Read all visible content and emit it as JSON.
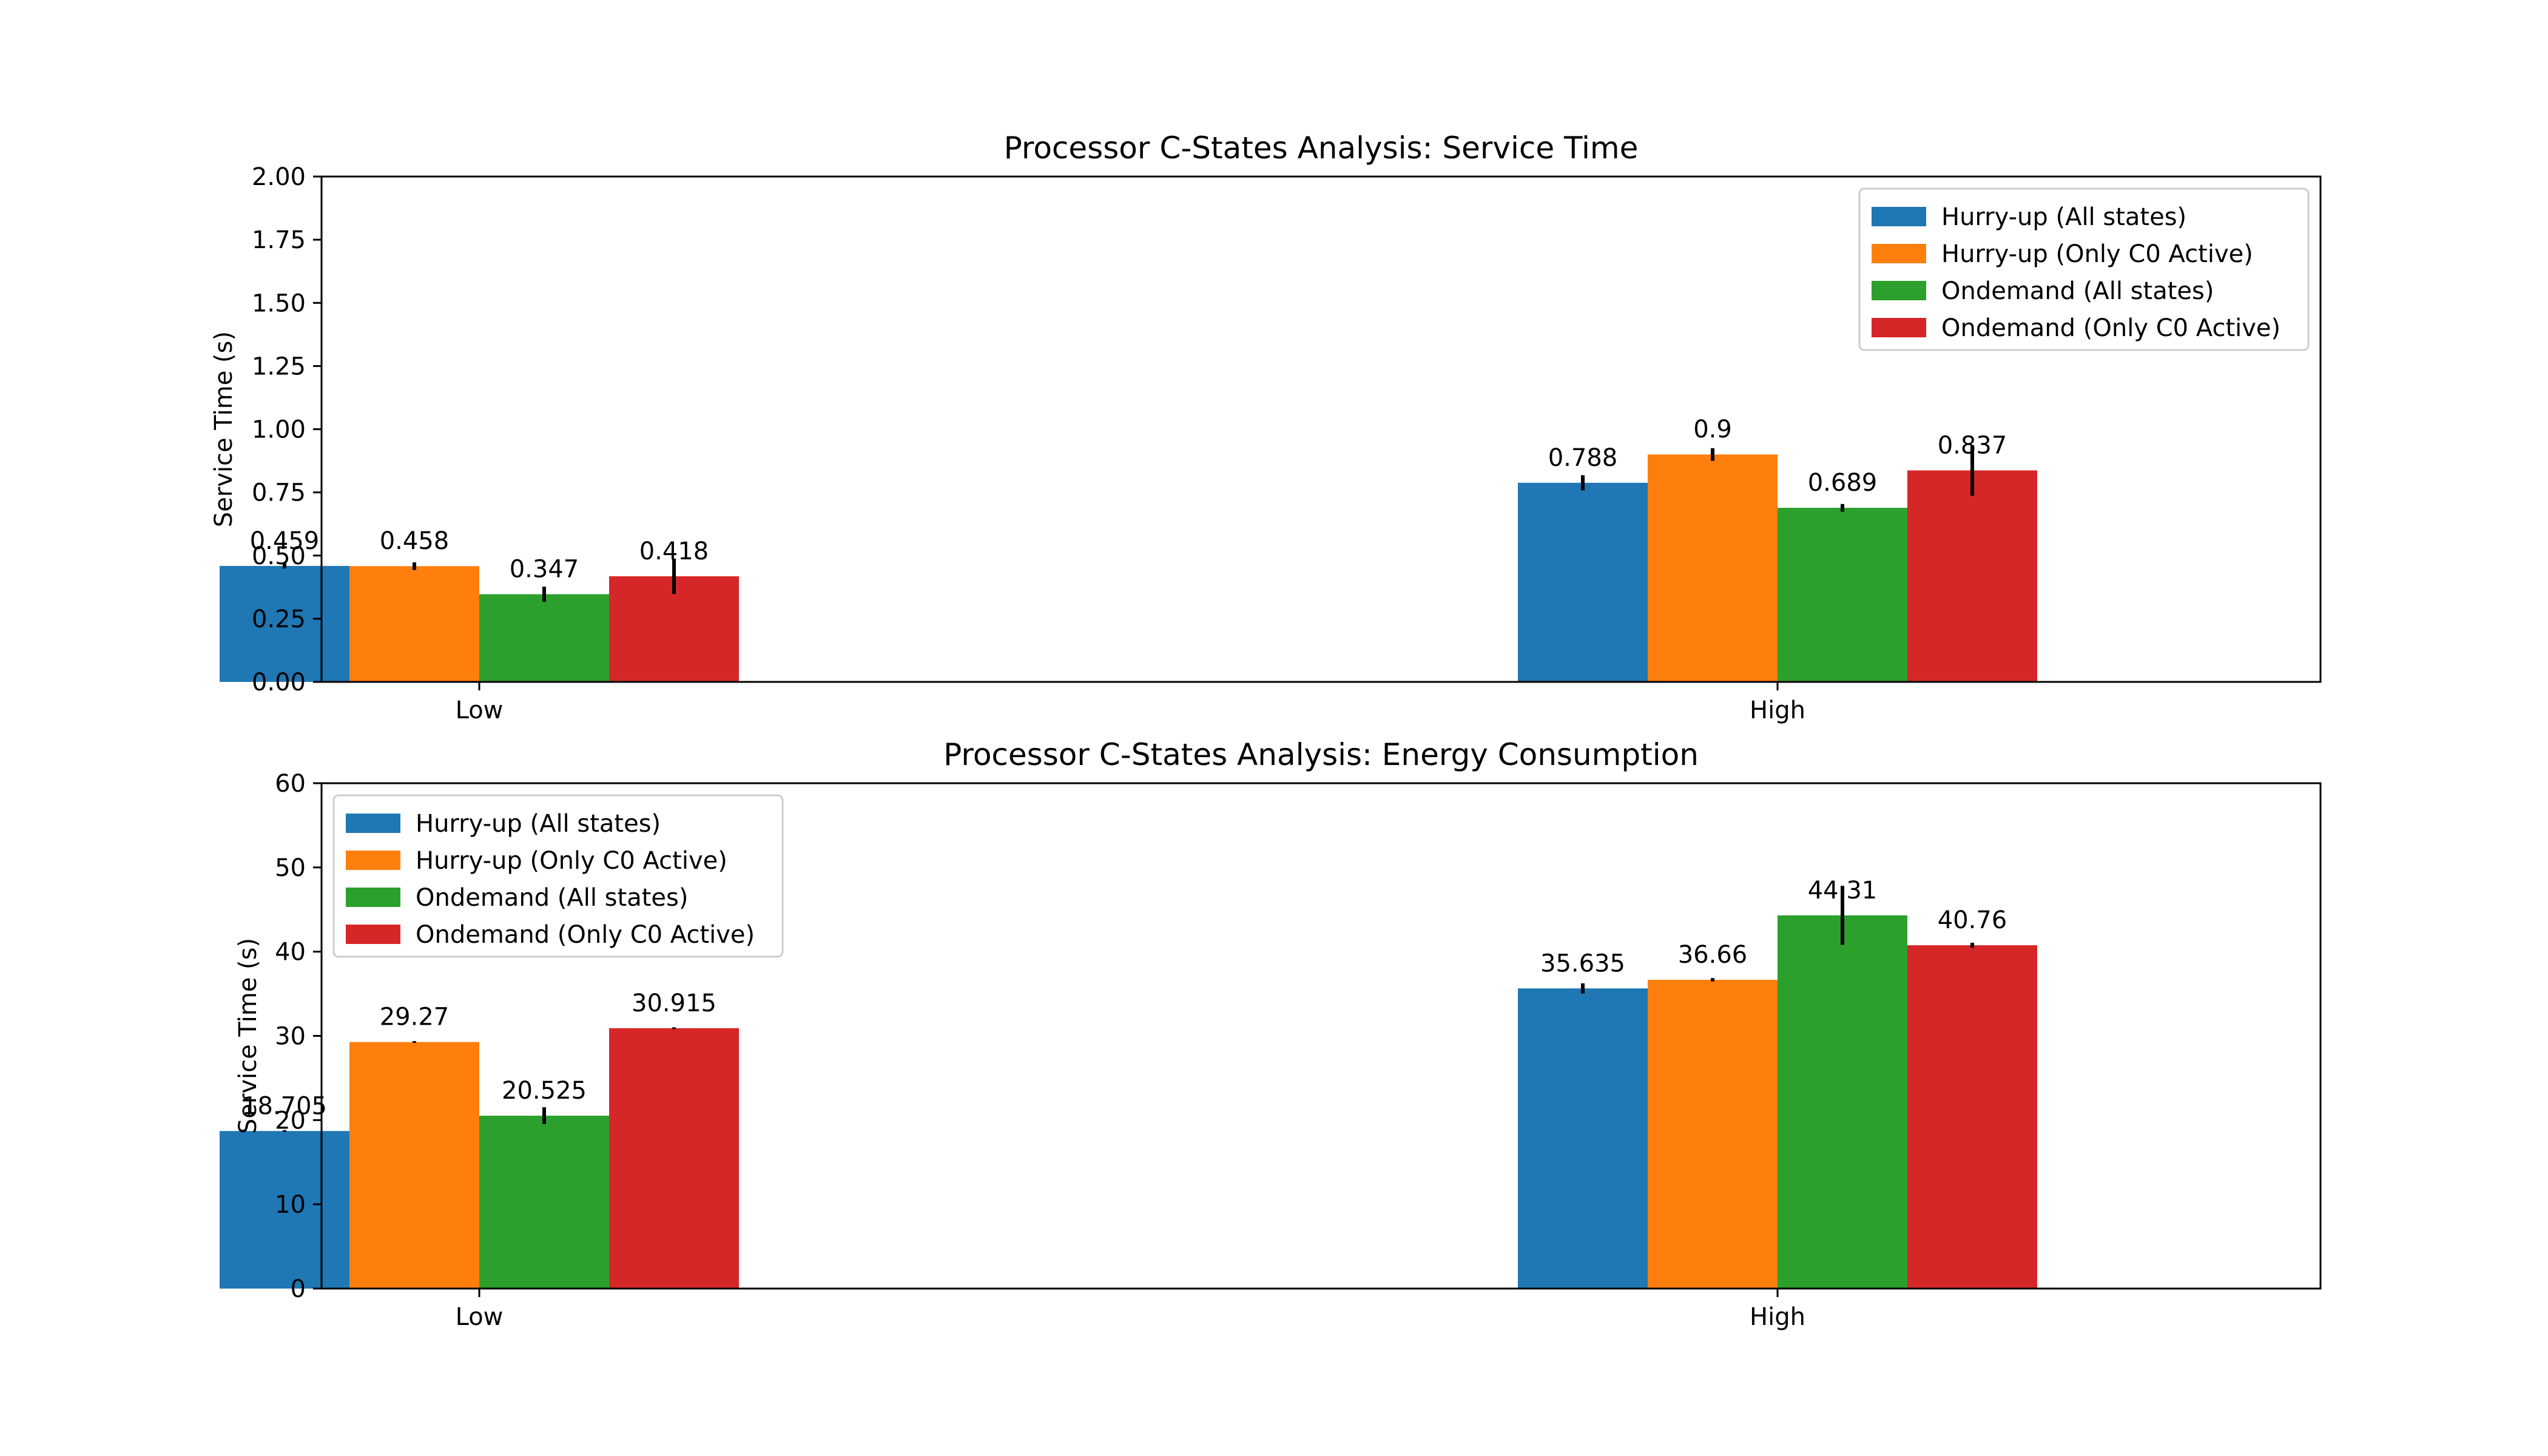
{
  "colors": {
    "hurry_all": "#1f77b4",
    "hurry_c0": "#ff7f0e",
    "ondemand_all": "#2ca02c",
    "ondemand_c0": "#d62728"
  },
  "chart_data": [
    {
      "type": "bar",
      "title": "Processor C-States Analysis: Service Time",
      "xlabel": "",
      "ylabel": "Service Time (s)",
      "ylim": [
        0,
        2.0
      ],
      "yticks": [
        0.0,
        0.25,
        0.5,
        0.75,
        1.0,
        1.25,
        1.5,
        1.75,
        2.0
      ],
      "ytick_labels": [
        "0.00",
        "0.25",
        "0.50",
        "0.75",
        "1.00",
        "1.25",
        "1.50",
        "1.75",
        "2.00"
      ],
      "categories": [
        "Low",
        "High"
      ],
      "legend": "top-right",
      "grid": false,
      "series": [
        {
          "name": "Hurry-up (All states)",
          "color": "#1f77b4",
          "values": [
            0.459,
            0.788
          ],
          "labels": [
            "0.459",
            "0.788"
          ],
          "err": [
            0.01,
            0.03
          ]
        },
        {
          "name": "Hurry-up (Only C0 Active)",
          "color": "#ff7f0e",
          "values": [
            0.458,
            0.9
          ],
          "labels": [
            "0.458",
            "0.9"
          ],
          "err": [
            0.015,
            0.025
          ]
        },
        {
          "name": "Ondemand (All states)",
          "color": "#2ca02c",
          "values": [
            0.347,
            0.689
          ],
          "labels": [
            "0.347",
            "0.689"
          ],
          "err": [
            0.03,
            0.015
          ]
        },
        {
          "name": "Ondemand (Only C0 Active)",
          "color": "#d62728",
          "values": [
            0.418,
            0.837
          ],
          "labels": [
            "0.418",
            "0.837"
          ],
          "err": [
            0.07,
            0.1
          ]
        }
      ]
    },
    {
      "type": "bar",
      "title": "Processor C-States Analysis: Energy Consumption",
      "xlabel": "",
      "ylabel": "Service Time (s)",
      "ylim": [
        0,
        60
      ],
      "yticks": [
        0,
        10,
        20,
        30,
        40,
        50,
        60
      ],
      "ytick_labels": [
        "0",
        "10",
        "20",
        "30",
        "40",
        "50",
        "60"
      ],
      "categories": [
        "Low",
        "High"
      ],
      "legend": "top-left",
      "grid": false,
      "series": [
        {
          "name": "Hurry-up (All states)",
          "color": "#1f77b4",
          "values": [
            18.705,
            35.635
          ],
          "labels": [
            "18.705",
            "35.635"
          ],
          "err": [
            0.1,
            0.6
          ]
        },
        {
          "name": "Hurry-up (Only C0 Active)",
          "color": "#ff7f0e",
          "values": [
            29.27,
            36.66
          ],
          "labels": [
            "29.27",
            "36.66"
          ],
          "err": [
            0.1,
            0.2
          ]
        },
        {
          "name": "Ondemand (All states)",
          "color": "#2ca02c",
          "values": [
            20.525,
            44.31
          ],
          "labels": [
            "20.525",
            "44.31"
          ],
          "err": [
            1.0,
            3.5
          ]
        },
        {
          "name": "Ondemand (Only C0 Active)",
          "color": "#d62728",
          "values": [
            30.915,
            40.76
          ],
          "labels": [
            "30.915",
            "40.76"
          ],
          "err": [
            0.1,
            0.3
          ]
        }
      ]
    }
  ]
}
